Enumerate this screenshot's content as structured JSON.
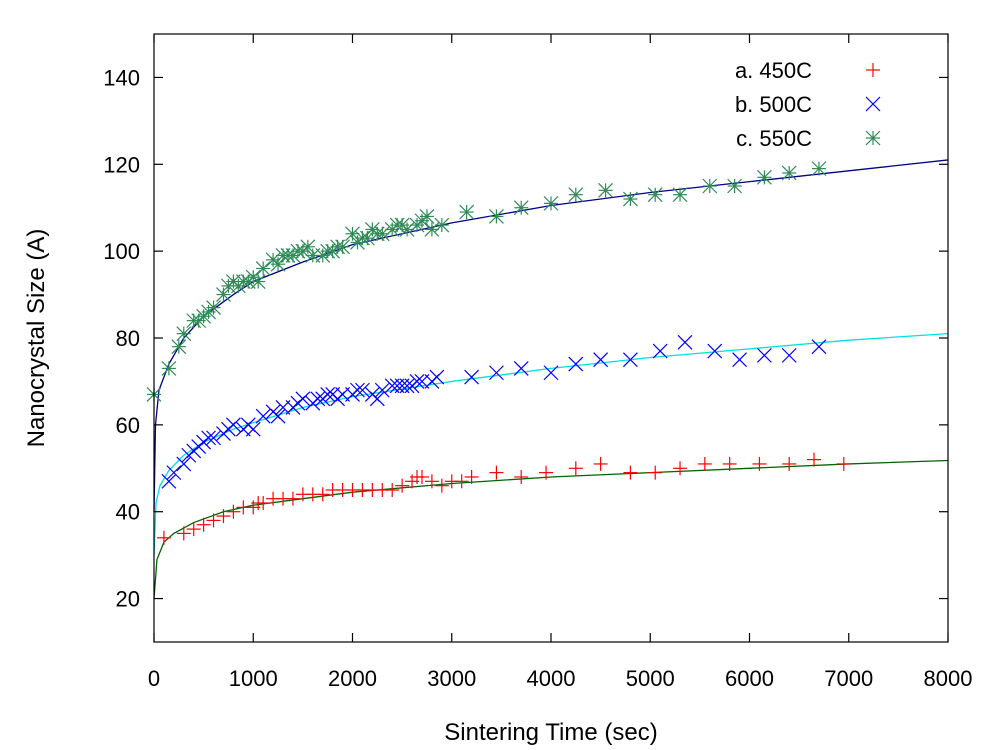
{
  "chart_data": {
    "type": "scatter",
    "title": "",
    "xlabel": "Sintering Time (sec)",
    "ylabel": "Nanocrystal Size (A)",
    "xlim": [
      0,
      8000
    ],
    "ylim": [
      10,
      150
    ],
    "xticks": [
      0,
      1000,
      2000,
      3000,
      4000,
      5000,
      6000,
      7000,
      8000
    ],
    "yticks": [
      20,
      40,
      60,
      80,
      100,
      120,
      140
    ],
    "grid": false,
    "legend": "top-right",
    "series": [
      {
        "name": "a. 450C",
        "marker": "plus",
        "color": "#ff0000",
        "fit_color": "#006400",
        "fit": [
          [
            0,
            20
          ],
          [
            30,
            29
          ],
          [
            100,
            33
          ],
          [
            200,
            35
          ],
          [
            400,
            37.5
          ],
          [
            700,
            40
          ],
          [
            1000,
            41.5
          ],
          [
            1500,
            43
          ],
          [
            2000,
            44.5
          ],
          [
            3000,
            46.5
          ],
          [
            4000,
            48
          ],
          [
            5000,
            49
          ],
          [
            6000,
            50
          ],
          [
            7000,
            51
          ],
          [
            8000,
            51.8
          ]
        ],
        "points": [
          [
            100,
            34
          ],
          [
            300,
            35
          ],
          [
            400,
            36
          ],
          [
            500,
            37
          ],
          [
            600,
            38
          ],
          [
            700,
            39
          ],
          [
            800,
            40
          ],
          [
            900,
            41
          ],
          [
            1000,
            41
          ],
          [
            1050,
            42
          ],
          [
            1100,
            42
          ],
          [
            1200,
            43
          ],
          [
            1300,
            43
          ],
          [
            1400,
            43
          ],
          [
            1500,
            44
          ],
          [
            1600,
            44
          ],
          [
            1700,
            44
          ],
          [
            1800,
            45
          ],
          [
            1900,
            45
          ],
          [
            2000,
            45
          ],
          [
            2100,
            45
          ],
          [
            2200,
            45
          ],
          [
            2300,
            45
          ],
          [
            2400,
            45
          ],
          [
            2500,
            46
          ],
          [
            2600,
            47
          ],
          [
            2650,
            48
          ],
          [
            2700,
            48
          ],
          [
            2800,
            47
          ],
          [
            2900,
            46
          ],
          [
            3000,
            47
          ],
          [
            3100,
            47
          ],
          [
            3200,
            48
          ],
          [
            3450,
            49
          ],
          [
            3700,
            48
          ],
          [
            3950,
            49
          ],
          [
            4250,
            50
          ],
          [
            4500,
            51
          ],
          [
            4800,
            49
          ],
          [
            5050,
            49
          ],
          [
            5300,
            50
          ],
          [
            5550,
            51
          ],
          [
            5800,
            51
          ],
          [
            6100,
            51
          ],
          [
            6400,
            51
          ],
          [
            6650,
            52
          ],
          [
            6950,
            51
          ]
        ]
      },
      {
        "name": "b. 500C",
        "marker": "x",
        "color": "#0000ff",
        "fit_color": "#00e0e0",
        "fit": [
          [
            0,
            30
          ],
          [
            20,
            42
          ],
          [
            60,
            46
          ],
          [
            150,
            49.5
          ],
          [
            300,
            53
          ],
          [
            500,
            56
          ],
          [
            800,
            59
          ],
          [
            1000,
            60.5
          ],
          [
            1500,
            64
          ],
          [
            2000,
            66.5
          ],
          [
            3000,
            70
          ],
          [
            4000,
            73
          ],
          [
            5000,
            75.5
          ],
          [
            6000,
            77.5
          ],
          [
            7000,
            79.5
          ],
          [
            8000,
            81
          ]
        ],
        "points": [
          [
            150,
            47
          ],
          [
            200,
            49
          ],
          [
            300,
            51
          ],
          [
            350,
            53
          ],
          [
            400,
            54
          ],
          [
            450,
            55
          ],
          [
            500,
            56
          ],
          [
            550,
            57
          ],
          [
            600,
            57
          ],
          [
            700,
            58
          ],
          [
            750,
            59
          ],
          [
            800,
            60
          ],
          [
            900,
            59
          ],
          [
            950,
            60
          ],
          [
            1000,
            59
          ],
          [
            1100,
            62
          ],
          [
            1200,
            63
          ],
          [
            1250,
            62
          ],
          [
            1300,
            64
          ],
          [
            1400,
            64
          ],
          [
            1450,
            65
          ],
          [
            1500,
            66
          ],
          [
            1600,
            65
          ],
          [
            1650,
            66
          ],
          [
            1700,
            66
          ],
          [
            1750,
            67
          ],
          [
            1800,
            67
          ],
          [
            1850,
            66
          ],
          [
            1900,
            67
          ],
          [
            2000,
            67
          ],
          [
            2050,
            68
          ],
          [
            2100,
            68
          ],
          [
            2200,
            67
          ],
          [
            2250,
            66
          ],
          [
            2300,
            68
          ],
          [
            2400,
            69
          ],
          [
            2450,
            69
          ],
          [
            2500,
            69
          ],
          [
            2550,
            69
          ],
          [
            2600,
            69
          ],
          [
            2650,
            70
          ],
          [
            2700,
            70
          ],
          [
            2800,
            70
          ],
          [
            2850,
            71
          ],
          [
            3200,
            71
          ],
          [
            3450,
            72
          ],
          [
            3700,
            73
          ],
          [
            4000,
            72
          ],
          [
            4250,
            74
          ],
          [
            4500,
            75
          ],
          [
            4800,
            75
          ],
          [
            5100,
            77
          ],
          [
            5350,
            79
          ],
          [
            5650,
            77
          ],
          [
            5900,
            75
          ],
          [
            6150,
            76
          ],
          [
            6400,
            76
          ],
          [
            6700,
            78
          ]
        ]
      },
      {
        "name": "c. 550C",
        "marker": "star",
        "color": "#2e8b57",
        "fit_color": "#00008b",
        "fit": [
          [
            0,
            40
          ],
          [
            15,
            60
          ],
          [
            50,
            68
          ],
          [
            150,
            74
          ],
          [
            300,
            80
          ],
          [
            500,
            85
          ],
          [
            800,
            90
          ],
          [
            1000,
            93
          ],
          [
            1500,
            97.5
          ],
          [
            2000,
            101.5
          ],
          [
            3000,
            106.5
          ],
          [
            4000,
            110.5
          ],
          [
            5000,
            113.5
          ],
          [
            6000,
            116
          ],
          [
            7000,
            118.5
          ],
          [
            8000,
            121
          ]
        ],
        "points": [
          [
            0,
            67
          ],
          [
            150,
            73
          ],
          [
            250,
            78
          ],
          [
            300,
            81
          ],
          [
            400,
            84
          ],
          [
            450,
            84
          ],
          [
            500,
            85
          ],
          [
            550,
            86
          ],
          [
            600,
            87
          ],
          [
            700,
            90
          ],
          [
            750,
            92
          ],
          [
            800,
            93
          ],
          [
            850,
            92
          ],
          [
            900,
            93
          ],
          [
            950,
            93
          ],
          [
            1000,
            94
          ],
          [
            1050,
            93
          ],
          [
            1100,
            96
          ],
          [
            1200,
            98
          ],
          [
            1250,
            97
          ],
          [
            1300,
            99
          ],
          [
            1350,
            99
          ],
          [
            1400,
            99
          ],
          [
            1450,
            100
          ],
          [
            1500,
            100
          ],
          [
            1550,
            101
          ],
          [
            1600,
            99
          ],
          [
            1700,
            99
          ],
          [
            1750,
            100
          ],
          [
            1800,
            100
          ],
          [
            1850,
            101
          ],
          [
            1900,
            101
          ],
          [
            2000,
            104
          ],
          [
            2050,
            102
          ],
          [
            2100,
            103
          ],
          [
            2150,
            103
          ],
          [
            2200,
            105
          ],
          [
            2250,
            104
          ],
          [
            2300,
            104
          ],
          [
            2400,
            105
          ],
          [
            2450,
            106
          ],
          [
            2500,
            106
          ],
          [
            2550,
            105
          ],
          [
            2650,
            106
          ],
          [
            2700,
            107
          ],
          [
            2750,
            108
          ],
          [
            2800,
            105
          ],
          [
            2900,
            106
          ],
          [
            3150,
            109
          ],
          [
            3450,
            108
          ],
          [
            3700,
            110
          ],
          [
            4000,
            111
          ],
          [
            4250,
            113
          ],
          [
            4550,
            114
          ],
          [
            4800,
            112
          ],
          [
            5050,
            113
          ],
          [
            5300,
            113
          ],
          [
            5600,
            115
          ],
          [
            5850,
            115
          ],
          [
            6150,
            117
          ],
          [
            6400,
            118
          ],
          [
            6700,
            119
          ]
        ]
      }
    ]
  }
}
